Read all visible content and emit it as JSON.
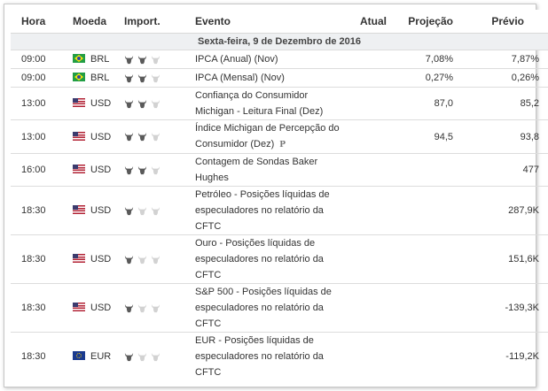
{
  "header": {
    "time": "Hora",
    "currency": "Moeda",
    "importance": "Import.",
    "event": "Evento",
    "actual": "Atual",
    "forecast": "Projeção",
    "previous": "Prévio"
  },
  "date_label": "Sexta-feira, 9 de Dezembro de 2016",
  "rows": [
    {
      "time": "09:00",
      "flag": "brazil-flag",
      "currency": "BRL",
      "importance": 2,
      "event": "IPCA (Anual) (Nov)",
      "actual": "",
      "forecast": "7,08%",
      "previous": "7,87%"
    },
    {
      "time": "09:00",
      "flag": "brazil-flag",
      "currency": "BRL",
      "importance": 2,
      "event": "IPCA (Mensal) (Nov)",
      "actual": "",
      "forecast": "0,27%",
      "previous": "0,26%"
    },
    {
      "time": "13:00",
      "flag": "usa-flag",
      "currency": "USD",
      "importance": 2,
      "event": "Confiança do Consumidor Michigan - Leitura Final (Dez)",
      "actual": "",
      "forecast": "87,0",
      "previous": "85,2"
    },
    {
      "time": "13:00",
      "flag": "usa-flag",
      "currency": "USD",
      "importance": 2,
      "event": "Índice Michigan de Percepção do Consumidor (Dez)",
      "prelim": "P",
      "actual": "",
      "forecast": "94,5",
      "previous": "93,8"
    },
    {
      "time": "16:00",
      "flag": "usa-flag",
      "currency": "USD",
      "importance": 2,
      "event": "Contagem de Sondas Baker Hughes",
      "actual": "",
      "forecast": "",
      "previous": "477"
    },
    {
      "time": "18:30",
      "flag": "usa-flag",
      "currency": "USD",
      "importance": 1,
      "event": "Petróleo - Posições líquidas de especuladores no relatório da CFTC",
      "actual": "",
      "forecast": "",
      "previous": "287,9K"
    },
    {
      "time": "18:30",
      "flag": "usa-flag",
      "currency": "USD",
      "importance": 1,
      "event": "Ouro - Posições líquidas de especuladores no relatório da CFTC",
      "actual": "",
      "forecast": "",
      "previous": "151,6K"
    },
    {
      "time": "18:30",
      "flag": "usa-flag",
      "currency": "USD",
      "importance": 1,
      "event": "S&P 500 - Posições líquidas de especuladores no relatório da CFTC",
      "actual": "",
      "forecast": "",
      "previous": "-139,3K"
    },
    {
      "time": "18:30",
      "flag": "eu-flag",
      "currency": "EUR",
      "importance": 1,
      "event": "EUR - Posições líquidas de especuladores no relatório da CFTC",
      "actual": "",
      "forecast": "",
      "previous": "-119,2K"
    }
  ],
  "colors": {
    "bull_active": "#5a5a5a",
    "bull_inactive": "#d2d2d2"
  }
}
